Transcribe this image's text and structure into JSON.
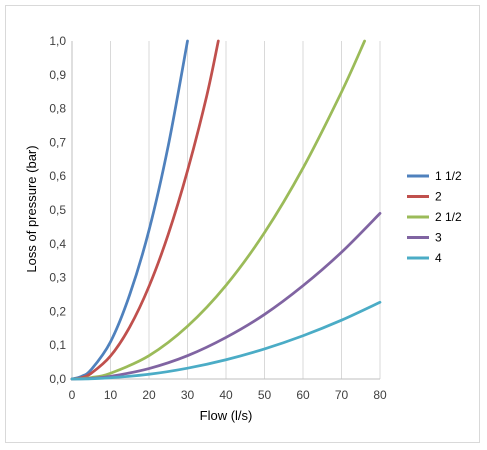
{
  "chart_data": {
    "type": "line",
    "title": "",
    "xlabel": "Flow (l/s)",
    "ylabel": "Loss of pressure (bar)",
    "xlim": [
      0,
      80
    ],
    "ylim": [
      0,
      1.0
    ],
    "x_ticks": [
      "0",
      "10",
      "20",
      "30",
      "40",
      "50",
      "60",
      "70",
      "80"
    ],
    "y_ticks": [
      "0,0",
      "0,1",
      "0,2",
      "0,3",
      "0,4",
      "0,5",
      "0,6",
      "0,7",
      "0,8",
      "0,9",
      "1,0"
    ],
    "grid": "vertical",
    "legend": "right",
    "series": [
      {
        "name": "1 1/2",
        "color": "#4f81bd",
        "points": [
          [
            0,
            0
          ],
          [
            2.5,
            0.008
          ],
          [
            5,
            0.028
          ],
          [
            10,
            0.11
          ],
          [
            15,
            0.25
          ],
          [
            20,
            0.44
          ],
          [
            25,
            0.69
          ],
          [
            30,
            1.0
          ]
        ]
      },
      {
        "name": "2",
        "color": "#c0504d",
        "points": [
          [
            0,
            0
          ],
          [
            2.5,
            0.004
          ],
          [
            5,
            0.017
          ],
          [
            10,
            0.068
          ],
          [
            15,
            0.154
          ],
          [
            20,
            0.274
          ],
          [
            25,
            0.428
          ],
          [
            30,
            0.616
          ],
          [
            35,
            0.838
          ],
          [
            38,
            1.0
          ]
        ]
      },
      {
        "name": "2 1/2",
        "color": "#9bbb59",
        "points": [
          [
            0,
            0
          ],
          [
            5,
            0.0043
          ],
          [
            10,
            0.017
          ],
          [
            20,
            0.069
          ],
          [
            30,
            0.156
          ],
          [
            40,
            0.277
          ],
          [
            50,
            0.433
          ],
          [
            60,
            0.624
          ],
          [
            70,
            0.849
          ],
          [
            76,
            1.0
          ]
        ]
      },
      {
        "name": "3",
        "color": "#8064a2",
        "points": [
          [
            0,
            0
          ],
          [
            5,
            0.0019
          ],
          [
            10,
            0.0077
          ],
          [
            20,
            0.031
          ],
          [
            30,
            0.069
          ],
          [
            40,
            0.123
          ],
          [
            50,
            0.191
          ],
          [
            60,
            0.276
          ],
          [
            70,
            0.375
          ],
          [
            80,
            0.49
          ]
        ]
      },
      {
        "name": "4",
        "color": "#4bacc6",
        "points": [
          [
            0,
            0
          ],
          [
            5,
            0.0009
          ],
          [
            10,
            0.0036
          ],
          [
            20,
            0.014
          ],
          [
            30,
            0.032
          ],
          [
            40,
            0.057
          ],
          [
            50,
            0.089
          ],
          [
            60,
            0.128
          ],
          [
            70,
            0.174
          ],
          [
            80,
            0.227
          ]
        ]
      }
    ]
  }
}
